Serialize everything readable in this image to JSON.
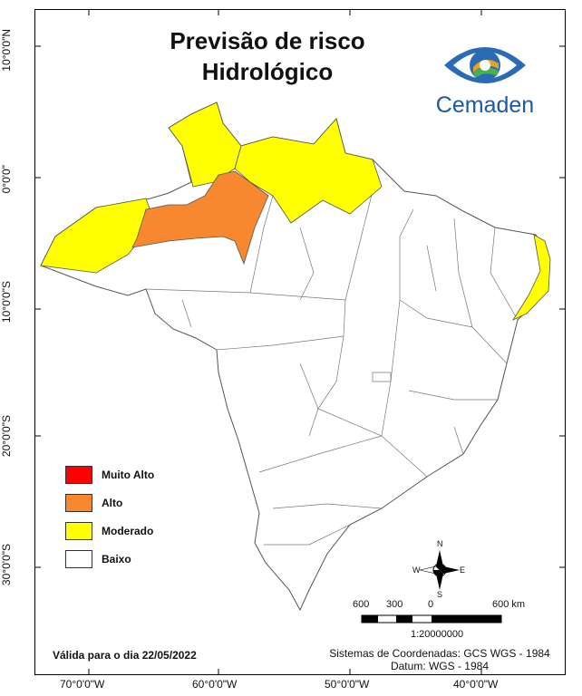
{
  "title_line1": "Previsão de risco",
  "title_line2": "Hidrológico",
  "logo": {
    "text": "Cemaden",
    "icon": "eye-logo-icon"
  },
  "legend": [
    {
      "label": "Muito Alto",
      "color": "#ff0000"
    },
    {
      "label": "Alto",
      "color": "#f7882f"
    },
    {
      "label": "Moderado",
      "color": "#ffff00"
    },
    {
      "label": "Baixo",
      "color": "#ffffff"
    }
  ],
  "valid_label": "Válida para o dia 22/05/2022",
  "coord_line1": "Sistemas de Coordenadas: GCS WGS - 1984",
  "coord_line2": "Datum: WGS - 1984",
  "lat_labels": [
    "10°0'0\"N",
    "0°0'0\"",
    "10°0'0\"S",
    "20°0'0\"S",
    "30°0'0\"S"
  ],
  "lon_labels": [
    "70°0'0\"W",
    "60°0'0\"W",
    "50°0'0\"W",
    "40°0'0\"W"
  ],
  "scale": {
    "ticks": [
      "600",
      "300",
      "0",
      "600 km"
    ],
    "ratio": "1:20000000"
  },
  "compass": {
    "n": "N",
    "s": "S",
    "e": "E",
    "w": "W"
  },
  "colors": {
    "outline": "#555555",
    "water": "#ffffff"
  }
}
